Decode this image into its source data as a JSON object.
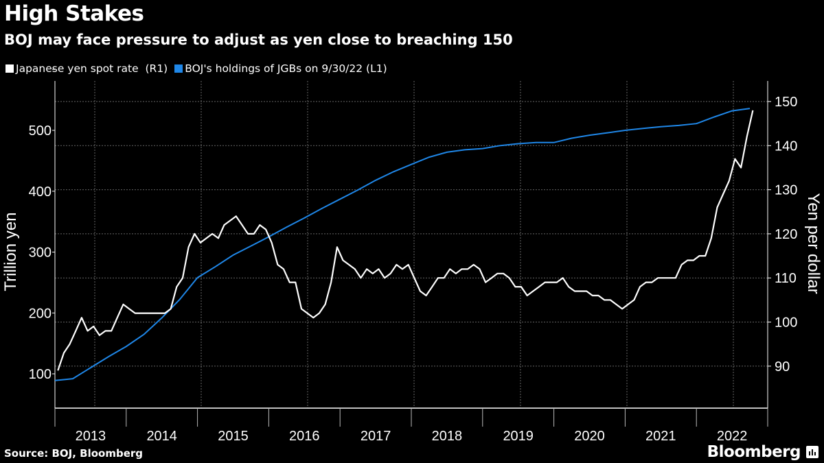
{
  "header": {
    "title": "High Stakes",
    "subtitle": "BOJ may face pressure to adjust as yen close to breaching 150"
  },
  "footer": {
    "source": "Source: BOJ, Bloomberg",
    "logo": "Bloomberg"
  },
  "colors": {
    "yen": "#ffffff",
    "boj": "#1f87e8",
    "background": "#000000"
  },
  "chart_data": {
    "type": "line",
    "title": "High Stakes",
    "subtitle": "BOJ may face pressure to adjust as yen close to breaching 150",
    "legend_placement": "top-left",
    "grid": true,
    "xlim": [
      2013.0,
      2023.0
    ],
    "x_tick_labels": [
      "2013",
      "2014",
      "2015",
      "2016",
      "2017",
      "2018",
      "2019",
      "2020",
      "2021",
      "2022"
    ],
    "left_axis": {
      "label": "Trillion yen",
      "ylim": [
        85,
        625
      ],
      "ticks": [
        100,
        200,
        300,
        400,
        500
      ]
    },
    "right_axis": {
      "label": "Yen per dollar",
      "ylim": [
        83,
        155
      ],
      "ticks": [
        90,
        100,
        110,
        120,
        130,
        140,
        150
      ]
    },
    "series": [
      {
        "name": "Japanese yen spot rate  (R1)",
        "axis": "right",
        "start": "2013-01",
        "frequency": "monthly",
        "values": [
          89,
          93,
          95,
          98,
          101,
          98,
          99,
          97,
          98,
          98,
          101,
          104,
          103,
          102,
          102,
          102,
          102,
          102,
          102,
          103,
          108,
          110,
          117,
          120,
          118,
          119,
          120,
          119,
          122,
          123,
          124,
          122,
          120,
          120,
          122,
          121,
          118,
          113,
          112,
          109,
          109,
          103,
          102,
          101,
          102,
          104,
          109,
          117,
          114,
          113,
          112,
          110,
          112,
          111,
          112,
          110,
          111,
          113,
          112,
          113,
          110,
          107,
          106,
          108,
          110,
          110,
          112,
          111,
          112,
          112,
          113,
          112,
          109,
          110,
          111,
          111,
          110,
          108,
          108,
          106,
          107,
          108,
          109,
          109,
          109,
          110,
          108,
          107,
          107,
          107,
          106,
          106,
          105,
          105,
          104,
          103,
          104,
          105,
          108,
          109,
          109,
          110,
          110,
          110,
          110,
          113,
          114,
          114,
          115,
          115,
          119,
          126,
          129,
          132,
          137,
          135,
          142,
          148
        ]
      },
      {
        "name": "BOJ's holdings of JGBs on 9/30/22 (L1)",
        "axis": "left",
        "x": [
          2013.0,
          2013.25,
          2013.5,
          2013.75,
          2014.0,
          2014.25,
          2014.5,
          2014.75,
          2015.0,
          2015.25,
          2015.5,
          2015.75,
          2016.0,
          2016.25,
          2016.5,
          2016.75,
          2017.0,
          2017.25,
          2017.5,
          2017.75,
          2018.0,
          2018.25,
          2018.5,
          2018.75,
          2019.0,
          2019.25,
          2019.5,
          2019.75,
          2020.0,
          2020.25,
          2020.5,
          2020.75,
          2021.0,
          2021.25,
          2021.5,
          2021.75,
          2022.0,
          2022.25,
          2022.5,
          2022.75
        ],
        "values": [
          89,
          92,
          110,
          128,
          145,
          165,
          192,
          222,
          258,
          276,
          295,
          310,
          325,
          341,
          356,
          372,
          387,
          402,
          418,
          432,
          444,
          456,
          464,
          468,
          470,
          475,
          478,
          480,
          480,
          487,
          492,
          496,
          500,
          503,
          506,
          508,
          511,
          522,
          532,
          536
        ]
      }
    ]
  }
}
